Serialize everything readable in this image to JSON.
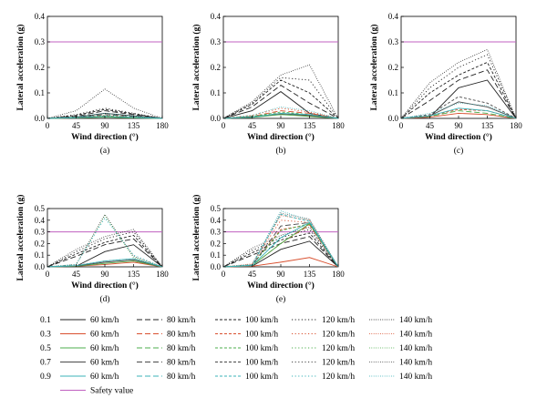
{
  "colors": {
    "0.1": "#222222",
    "0.3": "#d9502f",
    "0.5": "#4cae4c",
    "0.7": "#4a4a4a",
    "0.9": "#3bb3b8",
    "safety": "#c060c0"
  },
  "legend": {
    "factors": [
      "0.1",
      "0.3",
      "0.5",
      "0.7",
      "0.9"
    ],
    "speeds": [
      "60 km/h",
      "80 km/h",
      "100 km/h",
      "120 km/h",
      "140 km/h"
    ],
    "safety_label": "Safety value"
  },
  "chart_data": [
    {
      "id": "a",
      "type": "line",
      "caption": "(a)",
      "xlabel": "Wind direction (°)",
      "ylabel": "Lateral acceleration (g)",
      "x": [
        0,
        45,
        90,
        135,
        180
      ],
      "xlim": [
        0,
        180
      ],
      "ylim": [
        0,
        0.4
      ],
      "xticks": [
        "0",
        "45",
        "90",
        "135",
        "180"
      ],
      "yticks": [
        "0.0",
        "0.1",
        "0.2",
        "0.3",
        "0.4"
      ],
      "safety_value": 0.3,
      "series": [
        {
          "factor": "0.1",
          "speed": "60 km/h",
          "values": [
            0,
            0.005,
            0.02,
            0.01,
            0
          ]
        },
        {
          "factor": "0.1",
          "speed": "80 km/h",
          "values": [
            0,
            0.008,
            0.03,
            0.015,
            0
          ]
        },
        {
          "factor": "0.1",
          "speed": "100 km/h",
          "values": [
            0,
            0.012,
            0.035,
            0.018,
            0
          ]
        },
        {
          "factor": "0.1",
          "speed": "120 km/h",
          "values": [
            0,
            0.015,
            0.04,
            0.02,
            0
          ]
        },
        {
          "factor": "0.1",
          "speed": "140 km/h",
          "values": [
            0,
            0.03,
            0.115,
            0.04,
            0
          ]
        },
        {
          "factor": "0.3",
          "speed": "60 km/h",
          "values": [
            0,
            0.002,
            0.006,
            0.003,
            0
          ]
        },
        {
          "factor": "0.3",
          "speed": "100 km/h",
          "values": [
            0,
            0.004,
            0.01,
            0.005,
            0
          ]
        },
        {
          "factor": "0.5",
          "speed": "60 km/h",
          "values": [
            0,
            0.002,
            0.005,
            0.002,
            0
          ]
        },
        {
          "factor": "0.5",
          "speed": "120 km/h",
          "values": [
            0,
            0.004,
            0.012,
            0.006,
            0
          ]
        },
        {
          "factor": "0.7",
          "speed": "80 km/h",
          "values": [
            0,
            0.004,
            0.015,
            0.008,
            0
          ]
        },
        {
          "factor": "0.9",
          "speed": "60 km/h",
          "values": [
            0,
            0.003,
            0.008,
            0.004,
            0
          ]
        },
        {
          "factor": "0.9",
          "speed": "140 km/h",
          "values": [
            0,
            0.006,
            0.02,
            0.01,
            0
          ]
        }
      ]
    },
    {
      "id": "b",
      "type": "line",
      "caption": "(b)",
      "xlabel": "Wind direction (°)",
      "ylabel": "Lateral acceleration (g)",
      "x": [
        0,
        45,
        90,
        135,
        180
      ],
      "xlim": [
        0,
        180
      ],
      "ylim": [
        0,
        0.4
      ],
      "xticks": [
        "0",
        "45",
        "90",
        "135",
        "180"
      ],
      "yticks": [
        "0.0",
        "0.1",
        "0.2",
        "0.3",
        "0.4"
      ],
      "safety_value": 0.3,
      "series": [
        {
          "factor": "0.1",
          "speed": "60 km/h",
          "values": [
            0,
            0.03,
            0.105,
            0.02,
            0
          ]
        },
        {
          "factor": "0.1",
          "speed": "80 km/h",
          "values": [
            0,
            0.045,
            0.13,
            0.06,
            0
          ]
        },
        {
          "factor": "0.1",
          "speed": "100 km/h",
          "values": [
            0,
            0.055,
            0.15,
            0.1,
            0
          ]
        },
        {
          "factor": "0.1",
          "speed": "120 km/h",
          "values": [
            0,
            0.06,
            0.16,
            0.15,
            0
          ]
        },
        {
          "factor": "0.1",
          "speed": "140 km/h",
          "values": [
            0,
            0.065,
            0.17,
            0.21,
            0
          ]
        },
        {
          "factor": "0.3",
          "speed": "60 km/h",
          "values": [
            0,
            0.005,
            0.02,
            0.01,
            0
          ]
        },
        {
          "factor": "0.3",
          "speed": "80 km/h",
          "values": [
            0,
            0.008,
            0.03,
            0.02,
            0
          ]
        },
        {
          "factor": "0.3",
          "speed": "120 km/h",
          "values": [
            0,
            0.012,
            0.04,
            0.025,
            0
          ]
        },
        {
          "factor": "0.5",
          "speed": "60 km/h",
          "values": [
            0,
            0.004,
            0.015,
            0.008,
            0
          ]
        },
        {
          "factor": "0.5",
          "speed": "100 km/h",
          "values": [
            0,
            0.008,
            0.025,
            0.015,
            0
          ]
        },
        {
          "factor": "0.7",
          "speed": "60 km/h",
          "values": [
            0,
            0.006,
            0.018,
            0.012,
            0
          ]
        },
        {
          "factor": "0.9",
          "speed": "60 km/h",
          "values": [
            0,
            0.005,
            0.02,
            0.015,
            0
          ]
        },
        {
          "factor": "0.9",
          "speed": "140 km/h",
          "values": [
            0,
            0.012,
            0.045,
            0.03,
            0
          ]
        }
      ]
    },
    {
      "id": "c",
      "type": "line",
      "caption": "(c)",
      "xlabel": "Wind direction (°)",
      "ylabel": "Lateral acceleration (g)",
      "x": [
        0,
        45,
        90,
        135,
        180
      ],
      "xlim": [
        0,
        180
      ],
      "ylim": [
        0,
        0.4
      ],
      "xticks": [
        "0",
        "45",
        "90",
        "135",
        "180"
      ],
      "yticks": [
        "0.0",
        "0.1",
        "0.2",
        "0.3",
        "0.4"
      ],
      "safety_value": 0.3,
      "series": [
        {
          "factor": "0.1",
          "speed": "60 km/h",
          "values": [
            0,
            0.005,
            0.12,
            0.15,
            0
          ]
        },
        {
          "factor": "0.1",
          "speed": "80 km/h",
          "values": [
            0,
            0.07,
            0.15,
            0.19,
            0
          ]
        },
        {
          "factor": "0.1",
          "speed": "100 km/h",
          "values": [
            0,
            0.1,
            0.17,
            0.22,
            0
          ]
        },
        {
          "factor": "0.1",
          "speed": "120 km/h",
          "values": [
            0,
            0.12,
            0.2,
            0.25,
            0
          ]
        },
        {
          "factor": "0.1",
          "speed": "140 km/h",
          "values": [
            0,
            0.14,
            0.22,
            0.27,
            0
          ]
        },
        {
          "factor": "0.3",
          "speed": "60 km/h",
          "values": [
            0,
            0.005,
            0.02,
            0.015,
            0
          ]
        },
        {
          "factor": "0.3",
          "speed": "100 km/h",
          "values": [
            0,
            0.01,
            0.035,
            0.03,
            0
          ]
        },
        {
          "factor": "0.5",
          "speed": "80 km/h",
          "values": [
            0,
            0.008,
            0.03,
            0.02,
            0
          ]
        },
        {
          "factor": "0.7",
          "speed": "60 km/h",
          "values": [
            0,
            0.01,
            0.065,
            0.045,
            0
          ]
        },
        {
          "factor": "0.7",
          "speed": "100 km/h",
          "values": [
            0,
            0.015,
            0.085,
            0.06,
            0
          ]
        },
        {
          "factor": "0.9",
          "speed": "60 km/h",
          "values": [
            0,
            0.01,
            0.04,
            0.03,
            0
          ]
        },
        {
          "factor": "0.9",
          "speed": "140 km/h",
          "values": [
            0,
            0.02,
            0.06,
            0.05,
            0
          ]
        }
      ]
    },
    {
      "id": "d",
      "type": "line",
      "caption": "(d)",
      "xlabel": "Wind direction (°)",
      "ylabel": "Lateral acceleration (g)",
      "x": [
        0,
        45,
        90,
        135,
        180
      ],
      "xlim": [
        0,
        180
      ],
      "ylim": [
        0,
        0.5
      ],
      "xticks": [
        "0",
        "45",
        "90",
        "135",
        "180"
      ],
      "yticks": [
        "0.0",
        "0.1",
        "0.2",
        "0.3",
        "0.4",
        "0.5"
      ],
      "safety_value": 0.3,
      "series": [
        {
          "factor": "0.1",
          "speed": "60 km/h",
          "values": [
            0,
            0.005,
            0.13,
            0.19,
            0
          ]
        },
        {
          "factor": "0.1",
          "speed": "80 km/h",
          "values": [
            0,
            0.09,
            0.19,
            0.24,
            0
          ]
        },
        {
          "factor": "0.1",
          "speed": "100 km/h",
          "values": [
            0,
            0.11,
            0.21,
            0.27,
            0
          ]
        },
        {
          "factor": "0.1",
          "speed": "120 km/h",
          "values": [
            0,
            0.13,
            0.24,
            0.3,
            0
          ]
        },
        {
          "factor": "0.1",
          "speed": "140 km/h",
          "values": [
            0,
            0.15,
            0.26,
            0.32,
            0
          ]
        },
        {
          "factor": "0.3",
          "speed": "60 km/h",
          "values": [
            0,
            0.005,
            0.02,
            0.04,
            0
          ]
        },
        {
          "factor": "0.3",
          "speed": "120 km/h",
          "values": [
            0,
            0.012,
            0.05,
            0.07,
            0
          ]
        },
        {
          "factor": "0.5",
          "speed": "60 km/h",
          "values": [
            0,
            0.005,
            0.03,
            0.05,
            0
          ]
        },
        {
          "factor": "0.5",
          "speed": "140 km/h",
          "values": [
            0,
            0.02,
            0.44,
            0.08,
            0
          ]
        },
        {
          "factor": "0.7",
          "speed": "60 km/h",
          "values": [
            0,
            0.008,
            0.04,
            0.06,
            0
          ]
        },
        {
          "factor": "0.7",
          "speed": "140 km/h",
          "values": [
            0,
            0.02,
            0.45,
            0.09,
            0
          ]
        },
        {
          "factor": "0.9",
          "speed": "60 km/h",
          "values": [
            0,
            0.01,
            0.05,
            0.07,
            0
          ]
        },
        {
          "factor": "0.9",
          "speed": "120 km/h",
          "values": [
            0,
            0.02,
            0.42,
            0.1,
            0
          ]
        }
      ]
    },
    {
      "id": "e",
      "type": "line",
      "caption": "(e)",
      "xlabel": "Wind direction (°)",
      "ylabel": "Lateral acceleration (g)",
      "x": [
        0,
        45,
        90,
        135,
        180
      ],
      "xlim": [
        0,
        180
      ],
      "ylim": [
        0,
        0.5
      ],
      "xticks": [
        "0",
        "45",
        "90",
        "135",
        "180"
      ],
      "yticks": [
        "0.0",
        "0.1",
        "0.2",
        "0.3",
        "0.4",
        "0.5"
      ],
      "safety_value": 0.3,
      "series": [
        {
          "factor": "0.1",
          "speed": "60 km/h",
          "values": [
            0,
            0.005,
            0.15,
            0.22,
            0
          ]
        },
        {
          "factor": "0.1",
          "speed": "80 km/h",
          "values": [
            0,
            0.1,
            0.2,
            0.26,
            0
          ]
        },
        {
          "factor": "0.1",
          "speed": "100 km/h",
          "values": [
            0,
            0.12,
            0.23,
            0.29,
            0
          ]
        },
        {
          "factor": "0.1",
          "speed": "120 km/h",
          "values": [
            0,
            0.14,
            0.25,
            0.32,
            0
          ]
        },
        {
          "factor": "0.1",
          "speed": "140 km/h",
          "values": [
            0,
            0.16,
            0.27,
            0.34,
            0
          ]
        },
        {
          "factor": "0.3",
          "speed": "60 km/h",
          "values": [
            0,
            0.005,
            0.04,
            0.08,
            0
          ]
        },
        {
          "factor": "0.3",
          "speed": "80 km/h",
          "values": [
            0,
            0.01,
            0.2,
            0.36,
            0
          ]
        },
        {
          "factor": "0.3",
          "speed": "100 km/h",
          "values": [
            0,
            0.015,
            0.32,
            0.36,
            0
          ]
        },
        {
          "factor": "0.3",
          "speed": "120 km/h",
          "values": [
            0,
            0.02,
            0.4,
            0.38,
            0
          ]
        },
        {
          "factor": "0.3",
          "speed": "140 km/h",
          "values": [
            0,
            0.025,
            0.44,
            0.4,
            0
          ]
        },
        {
          "factor": "0.5",
          "speed": "60 km/h",
          "values": [
            0,
            0.01,
            0.2,
            0.37,
            0
          ]
        },
        {
          "factor": "0.5",
          "speed": "100 km/h",
          "values": [
            0,
            0.015,
            0.31,
            0.37,
            0
          ]
        },
        {
          "factor": "0.7",
          "speed": "80 km/h",
          "values": [
            0,
            0.012,
            0.35,
            0.38,
            0
          ]
        },
        {
          "factor": "0.7",
          "speed": "140 km/h",
          "values": [
            0,
            0.02,
            0.46,
            0.41,
            0
          ]
        },
        {
          "factor": "0.9",
          "speed": "60 km/h",
          "values": [
            0,
            0.01,
            0.25,
            0.38,
            0
          ]
        },
        {
          "factor": "0.9",
          "speed": "100 km/h",
          "values": [
            0,
            0.015,
            0.45,
            0.39,
            0
          ]
        },
        {
          "factor": "0.9",
          "speed": "140 km/h",
          "values": [
            0,
            0.02,
            0.48,
            0.4,
            0
          ]
        }
      ]
    }
  ]
}
